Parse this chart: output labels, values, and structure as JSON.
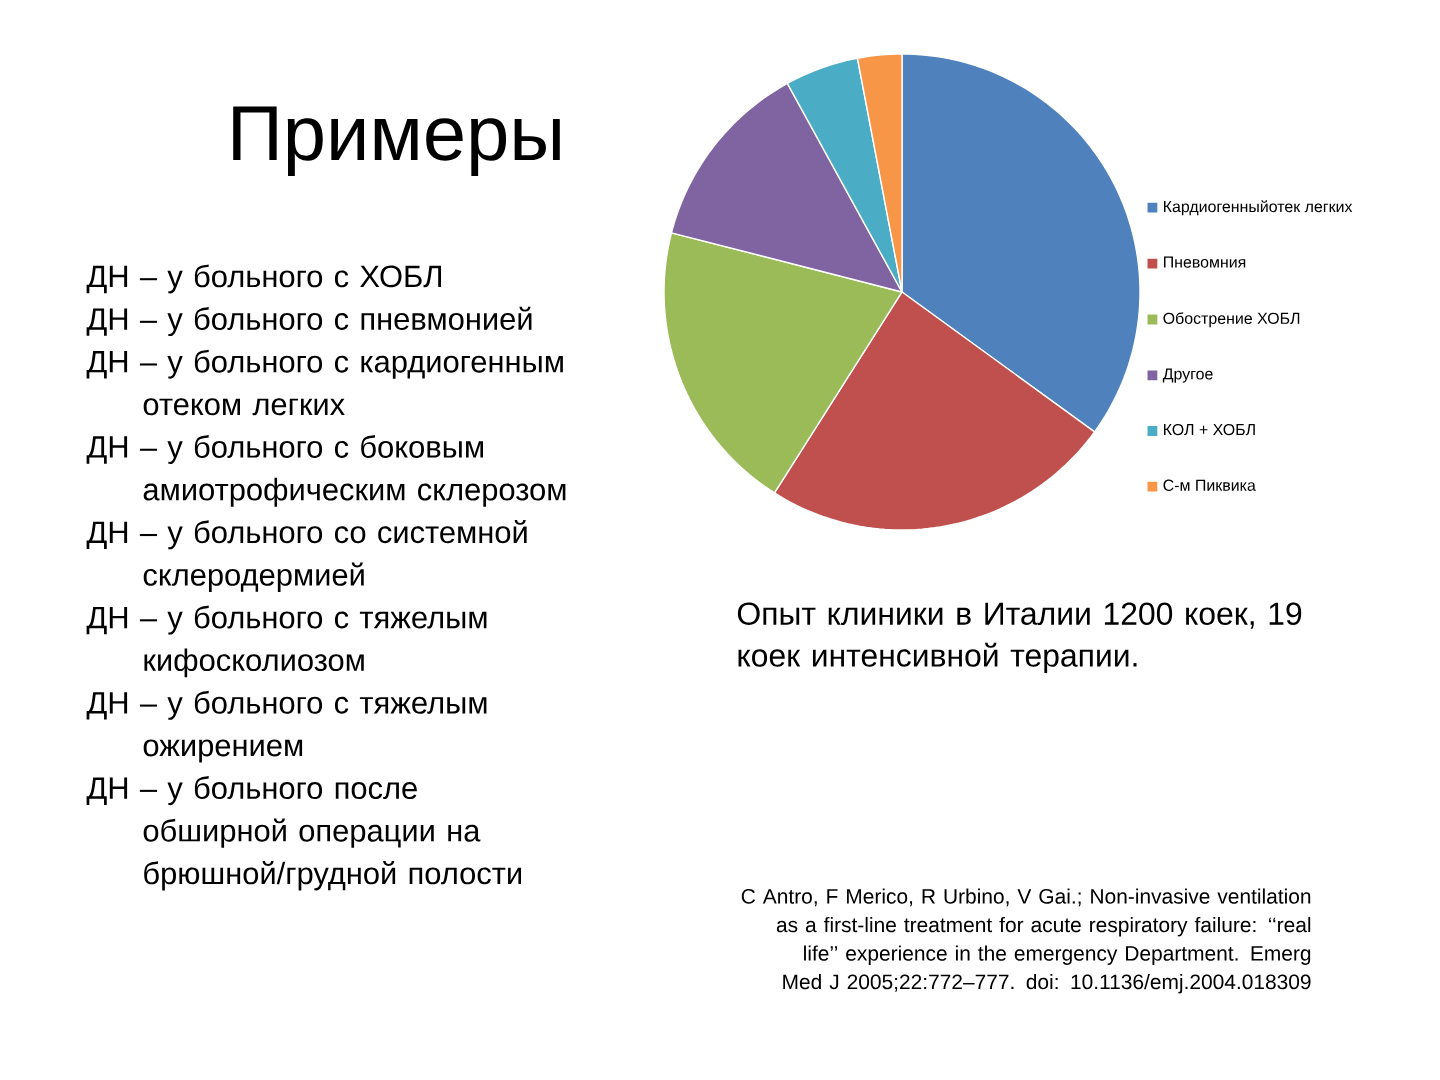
{
  "chart_data": {
    "type": "pie",
    "title": "Примеры",
    "categories": [
      "Кардиогенныйотек легких",
      "Пневомния",
      "Обострение ХОБЛ",
      "Другое",
      "КОЛ + ХОБЛ",
      "С-м Пиквика"
    ],
    "values": [
      35,
      24,
      20,
      13,
      5,
      3
    ],
    "colors": [
      "#4f81bd",
      "#c0504d",
      "#9bbb59",
      "#8064a2",
      "#4bacc6",
      "#f79646"
    ],
    "legend": "right",
    "annotations": [
      "ДН – у больного с ХОБЛ",
      "ДН – у больного с пневмонией",
      "ДН – у больного с кардиогенным отеком легких",
      "ДН – у больного с боковым амиотрофическим склерозом",
      "ДН – у больного со системной склеродермией",
      "ДН – у больного с тяжелым кифосколиозом",
      "ДН – у больного с тяжелым ожирением",
      "ДН – у больного после обширной операции на брюшной/грудной полости",
      "Опыт клиники в Италии 1200 коек, 19 коек интенсивной терапии.",
      "C Antro, F Merico, R Urbino, V Gai.; Non-invasive ventilation as a first-line treatment for acute respiratory failure: ‘‘real life’’ experience in the emergency Department. Emerg Med J 2005;22:772–777. doi: 10.1136/emj.2004.018309"
    ]
  }
}
